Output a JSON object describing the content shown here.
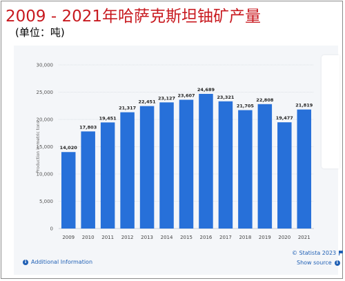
{
  "title": "2009 - 2021年哈萨克斯坦铀矿产量",
  "subtitle": "(单位：吨)",
  "footer": {
    "additional_info": "Additional Information",
    "copyright": "© Statista 2023",
    "show_source": "Show source"
  },
  "icons": {
    "info": "info-icon",
    "flag": "flag-icon"
  },
  "colors": {
    "bar": "#2770d9",
    "title": "#c8191f",
    "link": "#1f5fb4"
  },
  "chart_data": {
    "type": "bar",
    "title": "",
    "xlabel": "",
    "ylabel": "Production in metric tons",
    "categories": [
      "2009",
      "2010",
      "2011",
      "2012",
      "2013",
      "2014",
      "2015",
      "2016",
      "2017",
      "2018",
      "2019",
      "2020",
      "2021"
    ],
    "values": [
      14020,
      17803,
      19451,
      21317,
      22451,
      23127,
      23607,
      24689,
      23321,
      21705,
      22808,
      19477,
      21819
    ],
    "data_labels": [
      "14,020",
      "17,803",
      "19,451",
      "21,317",
      "22,451",
      "23,127",
      "23,607",
      "24,689",
      "23,321",
      "21,705",
      "22,808",
      "19,477",
      "21,819"
    ],
    "yticks": [
      0,
      5000,
      10000,
      15000,
      20000,
      25000,
      30000
    ],
    "ytick_labels": [
      "0",
      "5,000",
      "10,000",
      "15,000",
      "20,000",
      "25,000",
      "30,000"
    ],
    "ylim": [
      0,
      30000
    ],
    "grid": true,
    "legend": "none"
  }
}
